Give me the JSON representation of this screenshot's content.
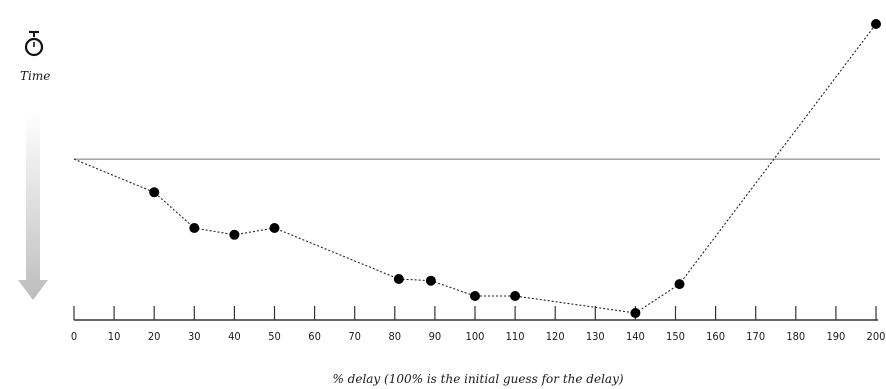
{
  "chart_data": {
    "type": "line",
    "xlabel": "% delay (100% is the initial guess for the delay)",
    "ylabel": "Time",
    "xlim": [
      0,
      200
    ],
    "x_ticks": [
      0,
      10,
      20,
      30,
      40,
      50,
      60,
      70,
      80,
      90,
      100,
      110,
      120,
      130,
      140,
      150,
      160,
      170,
      180,
      190,
      200
    ],
    "baseline_y": 0.905,
    "series": [
      {
        "points": [
          {
            "x": 0,
            "y": 0.905
          },
          {
            "x": 20,
            "y": 0.71
          },
          {
            "x": 30,
            "y": 0.5
          },
          {
            "x": 40,
            "y": 0.46
          },
          {
            "x": 50,
            "y": 0.5
          },
          {
            "x": 81,
            "y": 0.2
          },
          {
            "x": 89,
            "y": 0.19
          },
          {
            "x": 100,
            "y": 0.1
          },
          {
            "x": 110,
            "y": 0.1
          },
          {
            "x": 140,
            "y": 0.0
          },
          {
            "x": 151,
            "y": 0.17
          },
          {
            "x": 200,
            "y": 1.7
          }
        ]
      }
    ],
    "icons": {
      "stopwatch": "stopwatch-icon",
      "arrow": "down-arrow-icon"
    },
    "colors": {
      "axis": "#333333",
      "baseline": "#9a9a9a",
      "marker": "#000000",
      "arrow_top": "#ffffff",
      "arrow_bottom": "#bdbdbd"
    }
  }
}
